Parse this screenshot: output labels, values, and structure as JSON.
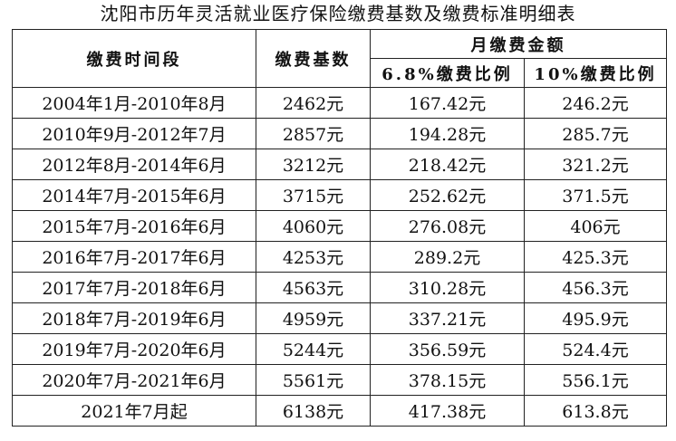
{
  "title": "沈阳市历年灵活就业医疗保险缴费基数及缴费标准明细表",
  "table": {
    "header": {
      "period": "缴费时间段",
      "base": "缴费基数",
      "monthly": "月缴费金额",
      "rate_a": "6.8%缴费比例",
      "rate_b": "10%缴费比例"
    },
    "rows": [
      [
        "2004年1月-2010年8月",
        "2462元",
        "167.42元",
        "246.2元"
      ],
      [
        "2010年9月-2012年7月",
        "2857元",
        "194.28元",
        "285.7元"
      ],
      [
        "2012年8月-2014年6月",
        "3212元",
        "218.42元",
        "321.2元"
      ],
      [
        "2014年7月-2015年6月",
        "3715元",
        "252.62元",
        "371.5元"
      ],
      [
        "2015年7月-2016年6月",
        "4060元",
        "276.08元",
        "406元"
      ],
      [
        "2016年7月-2017年6月",
        "4253元",
        "289.2元",
        "425.3元"
      ],
      [
        "2017年7月-2018年6月",
        "4563元",
        "310.28元",
        "456.3元"
      ],
      [
        "2018年7月-2019年6月",
        "4959元",
        "337.21元",
        "495.9元"
      ],
      [
        "2019年7月-2020年6月",
        "5244元",
        "356.59元",
        "524.4元"
      ],
      [
        "2020年7月-2021年6月",
        "5561元",
        "378.15元",
        "556.1元"
      ],
      [
        "2021年7月起",
        "6138元",
        "417.38元",
        "613.8元"
      ]
    ]
  }
}
